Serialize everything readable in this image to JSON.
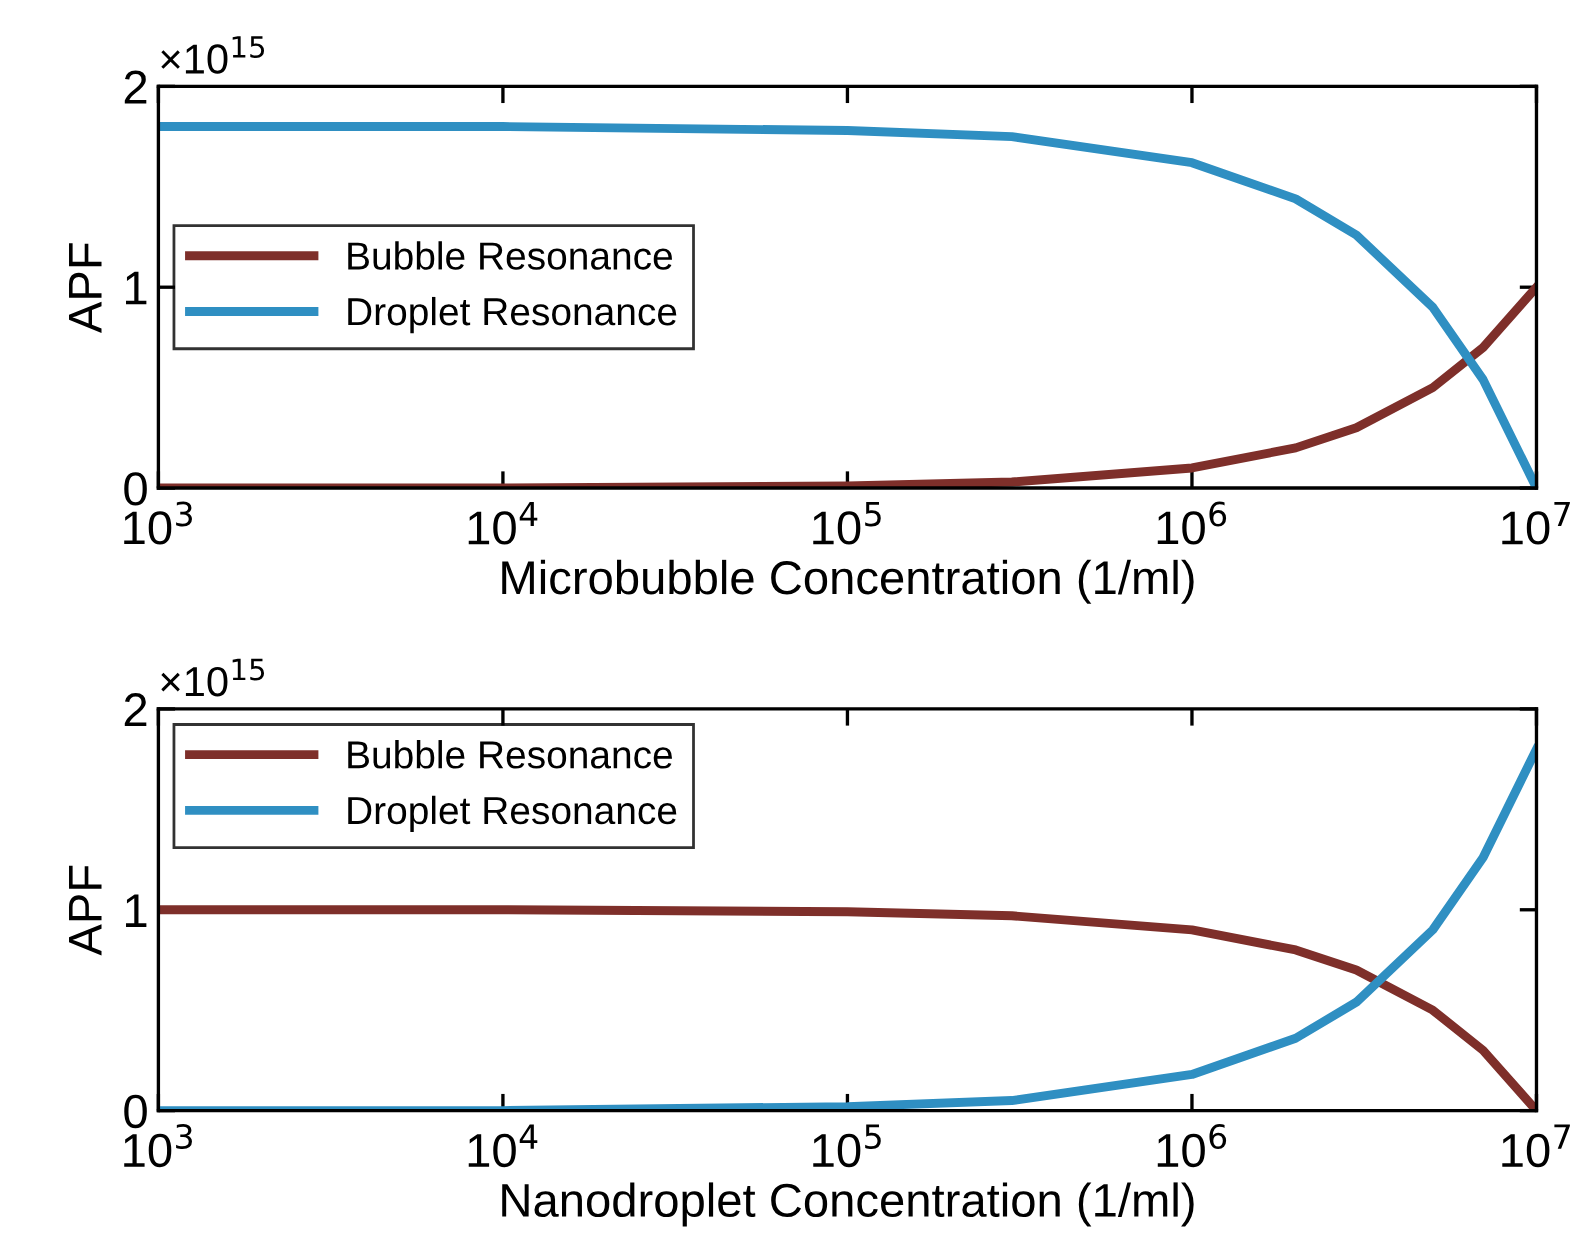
{
  "chart_data": [
    {
      "type": "line",
      "xlabel": "Microbubble Concentration (1/ml)",
      "ylabel": "APF",
      "log": "x",
      "x": [
        1000,
        10000,
        100000,
        300000,
        1000000,
        2000000,
        3000000,
        5000000,
        7000000,
        10000000
      ],
      "series": [
        {
          "name": "Bubble Resonance",
          "color": "#7e2f2a",
          "values": [
            0,
            0,
            0.01,
            0.03,
            0.1,
            0.2,
            0.3,
            0.5,
            0.7,
            1.0
          ]
        },
        {
          "name": "Droplet Resonance",
          "color": "#2f8fc2",
          "values": [
            1.8,
            1.8,
            1.78,
            1.75,
            1.62,
            1.44,
            1.26,
            0.9,
            0.54,
            0
          ]
        }
      ],
      "xlim": [
        1000,
        10000000
      ],
      "xticks": [
        {
          "value": 1000,
          "label": "10$^{3}$"
        },
        {
          "value": 10000,
          "label": "10$^{4}$"
        },
        {
          "value": 100000,
          "label": "10$^{5}$"
        },
        {
          "value": 1000000,
          "label": "10$^{6}$"
        },
        {
          "value": 10000000,
          "label": "10$^{7}$"
        }
      ],
      "ylim": [
        0,
        2
      ],
      "yticks": [
        0,
        1,
        2
      ],
      "annotations": [
        "×10$^{15}$"
      ],
      "legend": "left",
      "grid": false
    },
    {
      "type": "line",
      "xlabel": "Nanodroplet Concentration (1/ml)",
      "ylabel": "APF",
      "log": "x",
      "x": [
        1000,
        10000,
        100000,
        300000,
        1000000,
        2000000,
        3000000,
        5000000,
        7000000,
        10000000
      ],
      "series": [
        {
          "name": "Bubble Resonance",
          "color": "#7e2f2a",
          "values": [
            1.0,
            1.0,
            0.99,
            0.97,
            0.9,
            0.8,
            0.7,
            0.5,
            0.3,
            0
          ]
        },
        {
          "name": "Droplet Resonance",
          "color": "#2f8fc2",
          "values": [
            0,
            0,
            0.02,
            0.05,
            0.18,
            0.36,
            0.54,
            0.9,
            1.26,
            1.8
          ]
        }
      ],
      "xlim": [
        1000,
        10000000
      ],
      "xticks": [
        {
          "value": 1000,
          "label": "10$^{3}$"
        },
        {
          "value": 10000,
          "label": "10$^{4}$"
        },
        {
          "value": 100000,
          "label": "10$^{5}$"
        },
        {
          "value": 1000000,
          "label": "10$^{6}$"
        },
        {
          "value": 10000000,
          "label": "10$^{7}$"
        }
      ],
      "ylim": [
        0,
        2
      ],
      "yticks": [
        0,
        1,
        2
      ],
      "annotations": [
        "×10$^{15}$"
      ],
      "legend": "top left",
      "grid": false
    }
  ]
}
